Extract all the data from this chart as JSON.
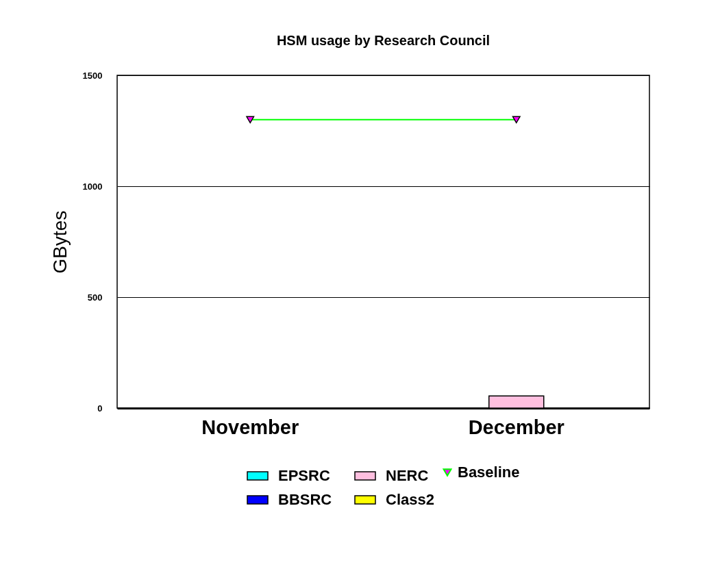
{
  "chart_data": {
    "type": "bar",
    "title": "HSM usage by Research Council",
    "ylabel": "GBytes",
    "categories": [
      "November",
      "December"
    ],
    "stacked": true,
    "ylim": [
      0,
      1500
    ],
    "yticks": [
      0,
      500,
      1000,
      1500
    ],
    "grid": "y",
    "legend": "bottom",
    "marker": "triangle",
    "series": [
      {
        "name": "EPSRC",
        "color": "#00ffff",
        "values": [
          null,
          null
        ]
      },
      {
        "name": "NERC",
        "color": "#ffbfdf",
        "values": [
          null,
          55
        ]
      },
      {
        "name": "BBSRC",
        "color": "#0000ff",
        "values": [
          null,
          null
        ]
      },
      {
        "name": "Class2",
        "color": "#ffff00",
        "values": [
          null,
          null
        ]
      },
      {
        "name": "Baseline",
        "type": "line",
        "color": "#00ff00",
        "colors": [
          "#ff00ff",
          "#ff00ff"
        ],
        "values": [
          1300,
          1300
        ]
      }
    ]
  }
}
